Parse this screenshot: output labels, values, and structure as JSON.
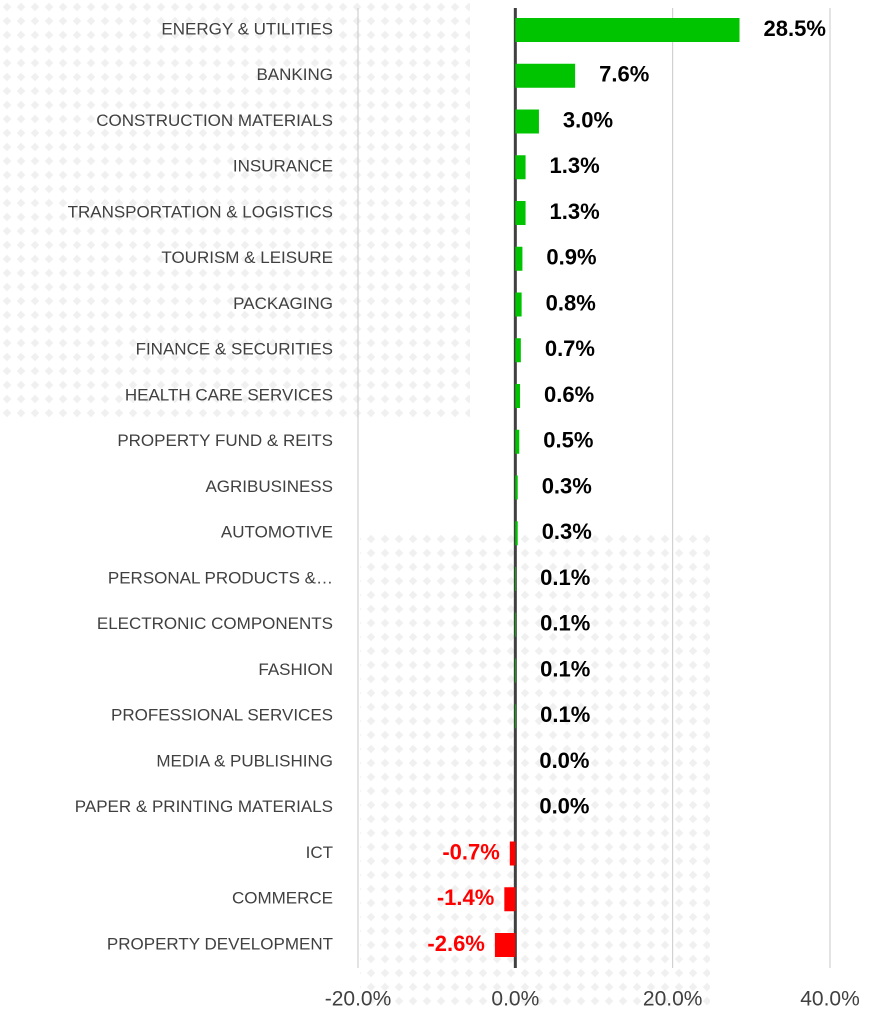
{
  "chart_data": {
    "type": "hbar",
    "categories": [
      "ENERGY & UTILITIES",
      "BANKING",
      "CONSTRUCTION MATERIALS",
      "INSURANCE",
      "TRANSPORTATION & LOGISTICS",
      "TOURISM & LEISURE",
      "PACKAGING",
      "FINANCE & SECURITIES",
      "HEALTH CARE SERVICES",
      "PROPERTY FUND & REITS",
      "AGRIBUSINESS",
      "AUTOMOTIVE",
      "PERSONAL PRODUCTS &…",
      "ELECTRONIC COMPONENTS",
      "FASHION",
      "PROFESSIONAL SERVICES",
      "MEDIA & PUBLISHING",
      "PAPER & PRINTING MATERIALS",
      "ICT",
      "COMMERCE",
      "PROPERTY DEVELOPMENT"
    ],
    "values": [
      28.5,
      7.6,
      3.0,
      1.3,
      1.3,
      0.9,
      0.8,
      0.7,
      0.6,
      0.5,
      0.3,
      0.3,
      0.1,
      0.1,
      0.1,
      0.1,
      0.0,
      0.0,
      -0.7,
      -1.4,
      -2.6
    ],
    "value_labels": [
      "28.5%",
      "7.6%",
      "3.0%",
      "1.3%",
      "1.3%",
      "0.9%",
      "0.8%",
      "0.7%",
      "0.6%",
      "0.5%",
      "0.3%",
      "0.3%",
      "0.1%",
      "0.1%",
      "0.1%",
      "0.1%",
      "0.0%",
      "0.0%",
      "-0.7%",
      "-1.4%",
      "-2.6%"
    ],
    "color_positive": "#00c400",
    "color_negative": "#ff0000",
    "xlim": [
      -20,
      40
    ],
    "xticks": [
      {
        "value": -20,
        "label": "-20.0%"
      },
      {
        "value": 0,
        "label": "0.0%"
      },
      {
        "value": 20,
        "label": "20.0%"
      },
      {
        "value": 40,
        "label": "40.0%"
      }
    ],
    "grid": true
  }
}
